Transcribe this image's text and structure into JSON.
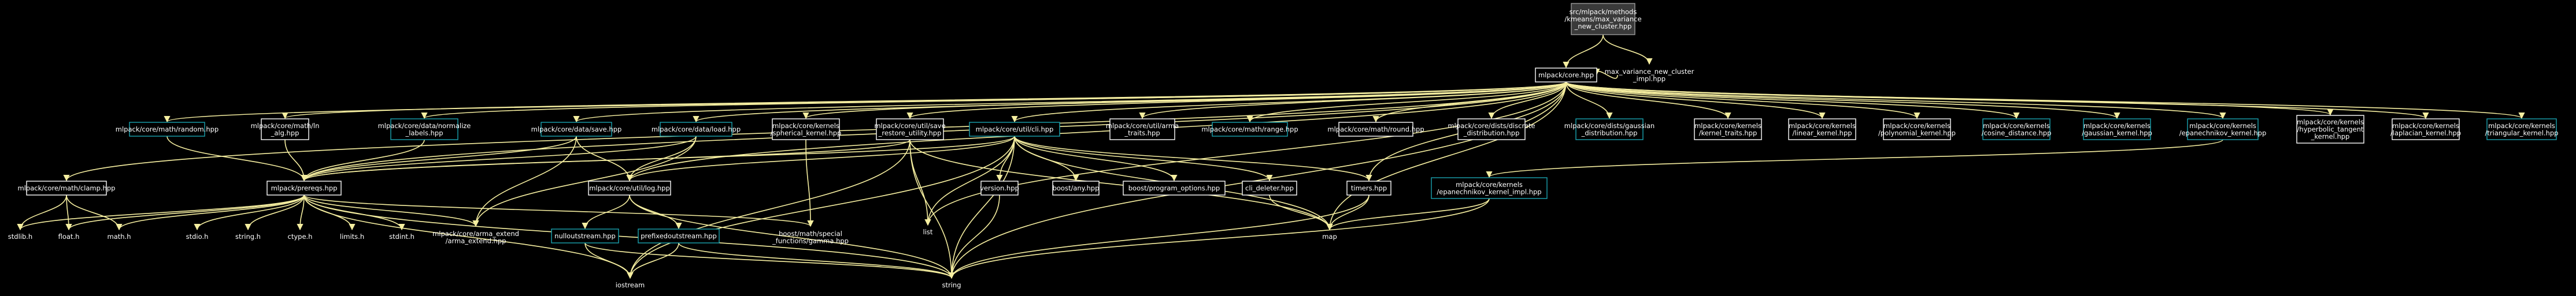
{
  "nodes": {
    "n0": [
      "src/mlpack/methods",
      "/kmeans/max_variance",
      "_new_cluster.hpp"
    ],
    "n1": [
      "mlpack/core.hpp"
    ],
    "n2": [
      "max_variance_new_cluster",
      "_impl.hpp"
    ],
    "n3": [
      "mlpack/core/math/random.hpp"
    ],
    "n4": [
      "mlpack/core/math/ln",
      "_alg.hpp"
    ],
    "n5": [
      "mlpack/core/data/normalize",
      "_labels.hpp"
    ],
    "n6": [
      "mlpack/core/data/save.hpp"
    ],
    "n7": [
      "mlpack/core/data/load.hpp"
    ],
    "n8": [
      "mlpack/core/kernels",
      "/spherical_kernel.hpp"
    ],
    "n9": [
      "mlpack/core/util/save",
      "_restore_utility.hpp"
    ],
    "n10": [
      "mlpack/core/util/cli.hpp"
    ],
    "n11": [
      "mlpack/core/util/arma",
      "_traits.hpp"
    ],
    "n12": [
      "mlpack/core/math/range.hpp"
    ],
    "n13": [
      "mlpack/core/math/round.hpp"
    ],
    "n14": [
      "mlpack/core/dists/discrete",
      "_distribution.hpp"
    ],
    "n15": [
      "mlpack/core/dists/gaussian",
      "_distribution.hpp"
    ],
    "n16": [
      "mlpack/core/kernels",
      "/kernel_traits.hpp"
    ],
    "n17": [
      "mlpack/core/kernels",
      "/linear_kernel.hpp"
    ],
    "n18": [
      "mlpack/core/kernels",
      "/polynomial_kernel.hpp"
    ],
    "n19": [
      "mlpack/core/kernels",
      "/cosine_distance.hpp"
    ],
    "n20": [
      "mlpack/core/kernels",
      "/gaussian_kernel.hpp"
    ],
    "n21": [
      "mlpack/core/kernels",
      "/epanechnikov_kernel.hpp"
    ],
    "n22": [
      "mlpack/core/kernels",
      "/hyperbolic_tangent",
      "_kernel.hpp"
    ],
    "n23": [
      "mlpack/core/kernels",
      "/laplacian_kernel.hpp"
    ],
    "n24": [
      "mlpack/core/kernels",
      "/triangular_kernel.hpp"
    ],
    "n25": [
      "mlpack/core/math/clamp.hpp"
    ],
    "n26": [
      "mlpack/prereqs.hpp"
    ],
    "n27": [
      "mlpack/core/util/log.hpp"
    ],
    "n28": [
      "list"
    ],
    "n29": [
      "version.hpp"
    ],
    "n30": [
      "boost/any.hpp"
    ],
    "n31": [
      "boost/program_options.hpp"
    ],
    "n32": [
      "cli_deleter.hpp"
    ],
    "n33": [
      "timers.hpp"
    ],
    "n34": [
      "mlpack/core/kernels",
      "/epanechnikov_kernel_impl.hpp"
    ],
    "n35": [
      "stdlib.h"
    ],
    "n36": [
      "float.h"
    ],
    "n37": [
      "math.h"
    ],
    "n38": [
      "stdio.h"
    ],
    "n39": [
      "string.h"
    ],
    "n40": [
      "ctype.h"
    ],
    "n41": [
      "limits.h"
    ],
    "n42": [
      "stdint.h"
    ],
    "n43": [
      "mlpack/core/arma_extend",
      "/arma_extend.hpp"
    ],
    "n44": [
      "boost/math/special",
      "_functions/gamma.hpp"
    ],
    "n45": [
      "nulloutstream.hpp"
    ],
    "n46": [
      "prefixedoutstream.hpp"
    ],
    "n47": [
      "map"
    ],
    "n48": [
      "iostream"
    ],
    "n49": [
      "string"
    ]
  },
  "colors": {
    "background": "#000000",
    "edge": "#f5eea0",
    "box_border": "#ffffff",
    "linked_border": "#1ba3b0",
    "current_fill": "#3a3a3a"
  }
}
